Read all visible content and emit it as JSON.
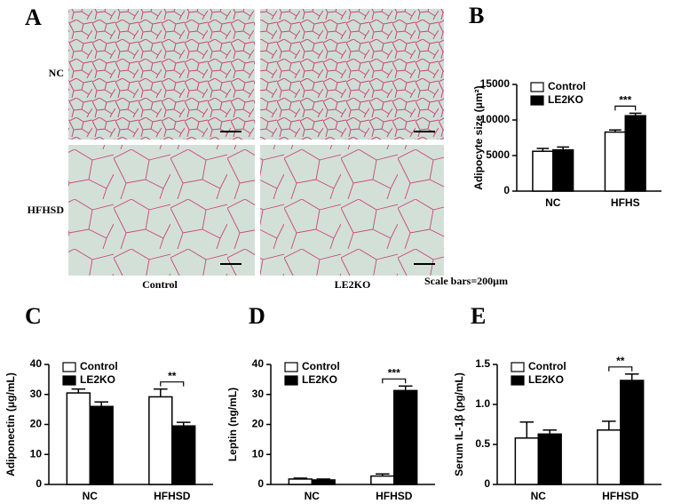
{
  "panel_a": {
    "label": "A",
    "rows": [
      "NC",
      "HFHSD"
    ],
    "columns": [
      "Control",
      "LE2KO"
    ],
    "note": "Scale bars=200μm"
  },
  "chart_data": [
    {
      "type": "bar",
      "panel": "B",
      "ylabel": "Adipocyte size (μm²)",
      "categories": [
        "NC",
        "HFHS"
      ],
      "series": [
        {
          "name": "Control",
          "color": "#ffffff",
          "values": [
            5600,
            8300
          ],
          "errors": [
            400,
            300
          ]
        },
        {
          "name": "LE2KO",
          "color": "#000000",
          "values": [
            5800,
            10600
          ],
          "errors": [
            400,
            350
          ]
        }
      ],
      "ylim": [
        0,
        15000
      ],
      "yticks": [
        0,
        5000,
        10000,
        15000
      ],
      "annotation": "***"
    },
    {
      "type": "bar",
      "panel": "C",
      "ylabel": "Adiponectin (μg/mL)",
      "categories": [
        "NC",
        "HFHSD"
      ],
      "series": [
        {
          "name": "Control",
          "color": "#ffffff",
          "values": [
            30.5,
            29.2
          ],
          "errors": [
            1.3,
            2.6
          ]
        },
        {
          "name": "LE2KO",
          "color": "#000000",
          "values": [
            26,
            19.5
          ],
          "errors": [
            1.5,
            1.2
          ]
        }
      ],
      "ylim": [
        0,
        40
      ],
      "yticks": [
        0,
        10,
        20,
        30,
        40
      ],
      "annotation": "**"
    },
    {
      "type": "bar",
      "panel": "D",
      "ylabel": "Leptin (ng/mL)",
      "categories": [
        "NC",
        "HFHSD"
      ],
      "series": [
        {
          "name": "Control",
          "color": "#ffffff",
          "values": [
            1.8,
            2.8
          ],
          "errors": [
            0.3,
            0.7
          ]
        },
        {
          "name": "LE2KO",
          "color": "#000000",
          "values": [
            1.5,
            31.3
          ],
          "errors": [
            0.3,
            1.5
          ]
        }
      ],
      "ylim": [
        0,
        40
      ],
      "yticks": [
        0,
        10,
        20,
        30,
        40
      ],
      "annotation": "***"
    },
    {
      "type": "bar",
      "panel": "E",
      "ylabel": "Serum IL-1β (pg/mL)",
      "categories": [
        "NC",
        "HFHSD"
      ],
      "series": [
        {
          "name": "Control",
          "color": "#ffffff",
          "values": [
            0.58,
            0.68
          ],
          "errors": [
            0.2,
            0.11
          ]
        },
        {
          "name": "LE2KO",
          "color": "#000000",
          "values": [
            0.63,
            1.3
          ],
          "errors": [
            0.05,
            0.08
          ]
        }
      ],
      "ylim": [
        0,
        1.5
      ],
      "yticks": [
        0,
        0.5,
        {
          "value": 1,
          "label": "1.0"
        },
        1.5
      ],
      "annotation": "**"
    }
  ]
}
